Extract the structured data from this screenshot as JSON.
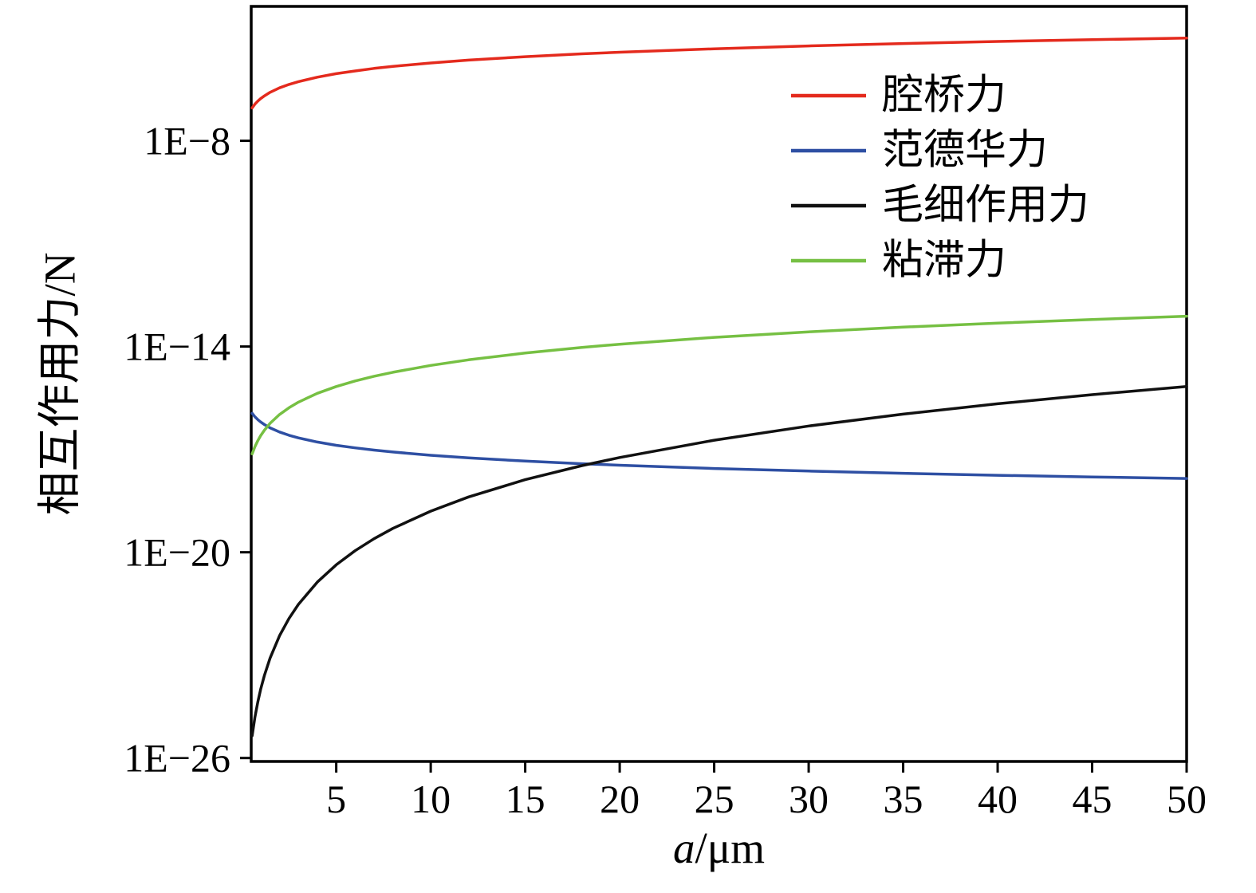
{
  "figure": {
    "background": "#ffffff"
  },
  "chart_data": {
    "type": "line",
    "title": "",
    "x_axis": {
      "label_italic": "a",
      "label_rest": "/μm",
      "scale": "linear",
      "range": [
        0.5,
        50
      ],
      "ticks": [
        {
          "label": "5",
          "value": 5
        },
        {
          "label": "10",
          "value": 10
        },
        {
          "label": "15",
          "value": 15
        },
        {
          "label": "20",
          "value": 20
        },
        {
          "label": "25",
          "value": 25
        },
        {
          "label": "30",
          "value": 30
        },
        {
          "label": "35",
          "value": 35
        },
        {
          "label": "40",
          "value": 40
        },
        {
          "label": "45",
          "value": 45
        },
        {
          "label": "50",
          "value": 50
        }
      ]
    },
    "y_axis": {
      "label": "相互作用力/N",
      "scale": "log",
      "range_log10": [
        -26.1,
        -4.08
      ],
      "ticks": [
        {
          "label": "1E−8",
          "log10": -8
        },
        {
          "label": "1E−14",
          "log10": -14
        },
        {
          "label": "1E−20",
          "log10": -20
        },
        {
          "label": "1E−26",
          "log10": -26
        }
      ]
    },
    "x": [
      0.55,
      0.7,
      0.85,
      1,
      1.2,
      1.5,
      2,
      2.5,
      3,
      4,
      5,
      6,
      7,
      8,
      10,
      12,
      15,
      18,
      20,
      25,
      30,
      35,
      40,
      45,
      50
    ],
    "series": [
      {
        "name": "腔桥力",
        "color": "#e42a1d",
        "values": [
          9.12e-08,
          1.17e-07,
          1.44e-07,
          1.7e-07,
          2.05e-07,
          2.59e-07,
          3.49e-07,
          4.41e-07,
          5.32e-07,
          7.18e-07,
          9.06e-07,
          1.09e-06,
          1.29e-06,
          1.48e-06,
          1.86e-06,
          2.25e-06,
          2.84e-06,
          3.44e-06,
          3.83e-06,
          4.83e-06,
          5.83e-06,
          6.85e-06,
          7.87e-06,
          8.89e-06,
          9.93e-06
        ]
      },
      {
        "name": "范德华力",
        "color": "#2e4fa3",
        "values": [
          1.13e-16,
          8.92e-17,
          7.39e-17,
          6.31e-17,
          5.29e-17,
          4.26e-17,
          3.22e-17,
          2.59e-17,
          2.17e-17,
          1.64e-17,
          1.32e-17,
          1.11e-17,
          9.55e-18,
          8.4e-18,
          6.76e-18,
          5.66e-18,
          4.56e-18,
          3.82e-18,
          3.45e-18,
          2.78e-18,
          2.33e-18,
          2.01e-18,
          1.76e-18,
          1.57e-18,
          1.42e-18
        ]
      },
      {
        "name": "毛细作用力",
        "color": "#111111",
        "values": [
          4.47e-26,
          1.57e-25,
          4.3e-25,
          1e-24,
          2.58e-24,
          8.24e-24,
          3.67e-23,
          1.17e-22,
          3.03e-22,
          1.35e-21,
          4.31e-21,
          1.11e-20,
          2.48e-20,
          4.97e-20,
          1.58e-19,
          4.09e-19,
          1.31e-18,
          3.37e-18,
          5.82e-18,
          1.86e-17,
          4.8e-17,
          1.07e-16,
          2.14e-16,
          3.95e-16,
          6.84e-16
        ]
      },
      {
        "name": "粘滞力",
        "color": "#76c043",
        "values": [
          7.38e-18,
          1.21e-17,
          1.8e-17,
          2.51e-17,
          3.65e-17,
          5.77e-17,
          1.04e-16,
          1.64e-16,
          2.39e-16,
          4.31e-16,
          6.81e-16,
          9.89e-16,
          1.36e-15,
          1.78e-15,
          2.82e-15,
          4.09e-15,
          6.47e-15,
          9.4e-15,
          1.17e-14,
          1.85e-14,
          2.68e-14,
          3.68e-14,
          4.83e-14,
          6.15e-14,
          7.64e-14
        ]
      }
    ],
    "legend": {
      "position": "top-right",
      "grid": "off"
    }
  }
}
